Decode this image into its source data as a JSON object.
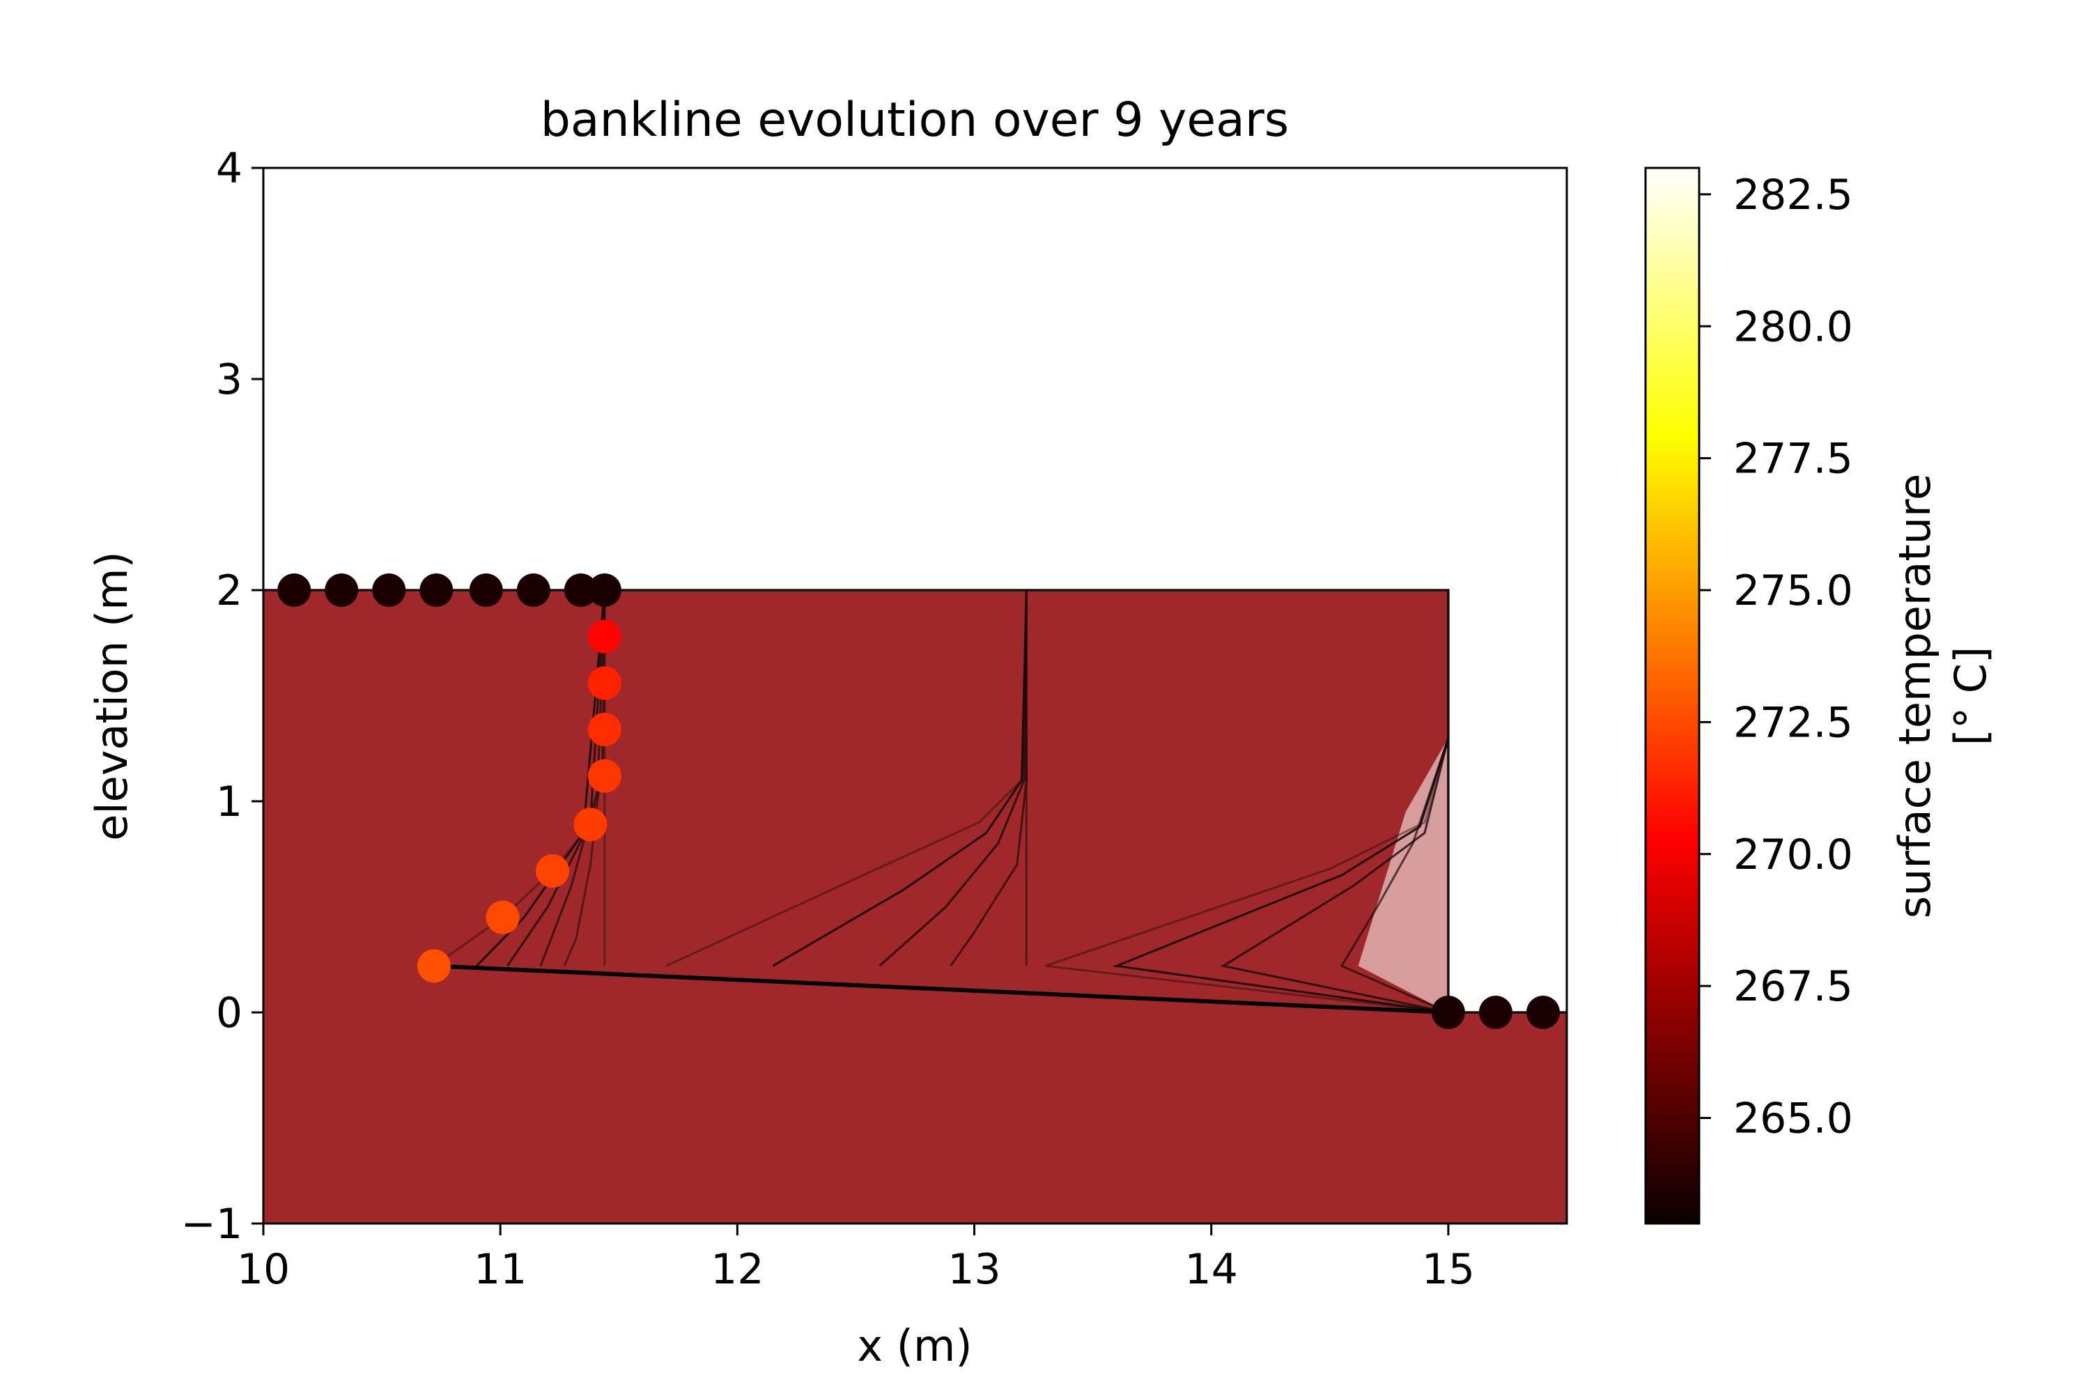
{
  "chart_data": {
    "type": "line",
    "title": "bankline evolution over 9 years",
    "xlabel": "x (m)",
    "ylabel": "elevation (m)",
    "xlim": [
      10,
      15.5
    ],
    "ylim": [
      -1,
      4
    ],
    "xticks": [
      10,
      11,
      12,
      13,
      14,
      15
    ],
    "yticks": [
      -1,
      0,
      1,
      2,
      3,
      4
    ],
    "xtick_labels": [
      "10",
      "11",
      "12",
      "13",
      "14",
      "15"
    ],
    "ytick_labels": [
      "−1",
      "0",
      "1",
      "2",
      "3",
      "4"
    ],
    "grid": false,
    "fill_color": "#a0282b",
    "profiles": [
      {
        "step": 0,
        "points": [
          [
            11.44,
            2.0
          ],
          [
            11.44,
            0.22
          ]
        ]
      },
      {
        "step": 1,
        "points": [
          [
            11.44,
            2.0
          ],
          [
            11.43,
            1.2
          ],
          [
            11.38,
            0.7
          ],
          [
            11.32,
            0.35
          ],
          [
            11.27,
            0.22
          ]
        ]
      },
      {
        "step": 2,
        "points": [
          [
            11.44,
            2.0
          ],
          [
            11.41,
            1.05
          ],
          [
            11.3,
            0.6
          ],
          [
            11.17,
            0.22
          ]
        ]
      },
      {
        "step": 3,
        "points": [
          [
            11.44,
            2.0
          ],
          [
            11.38,
            0.9
          ],
          [
            11.2,
            0.5
          ],
          [
            11.03,
            0.22
          ]
        ]
      },
      {
        "step": 4,
        "points": [
          [
            11.44,
            2.0
          ],
          [
            11.35,
            0.85
          ],
          [
            11.1,
            0.45
          ],
          [
            10.9,
            0.22
          ]
        ]
      },
      {
        "step": 5,
        "points": [
          [
            11.44,
            2.0
          ],
          [
            11.44,
            1.78
          ],
          [
            11.44,
            1.56
          ],
          [
            11.44,
            1.34
          ],
          [
            11.43,
            1.12
          ],
          [
            11.38,
            0.89
          ],
          [
            11.22,
            0.67
          ],
          [
            11.01,
            0.45
          ],
          [
            10.72,
            0.22
          ]
        ]
      },
      {
        "step": 6,
        "points": [
          [
            13.22,
            2.0
          ],
          [
            13.22,
            0.22
          ]
        ]
      },
      {
        "step": 7,
        "points": [
          [
            13.22,
            2.0
          ],
          [
            13.22,
            1.1
          ],
          [
            13.18,
            0.7
          ],
          [
            13.0,
            0.38
          ],
          [
            12.9,
            0.22
          ]
        ]
      },
      {
        "step": 8,
        "points": [
          [
            13.22,
            2.0
          ],
          [
            13.21,
            1.1
          ],
          [
            13.1,
            0.8
          ],
          [
            12.88,
            0.5
          ],
          [
            12.6,
            0.22
          ]
        ]
      },
      {
        "step": 9,
        "points": [
          [
            13.22,
            2.0
          ],
          [
            13.2,
            1.1
          ],
          [
            13.05,
            0.85
          ],
          [
            12.7,
            0.58
          ],
          [
            12.15,
            0.22
          ]
        ]
      },
      {
        "step": 10,
        "points": [
          [
            13.22,
            2.0
          ],
          [
            13.2,
            1.1
          ],
          [
            13.02,
            0.9
          ],
          [
            12.55,
            0.66
          ],
          [
            11.7,
            0.22
          ]
        ]
      },
      {
        "step": 11,
        "points": [
          [
            15.0,
            2.0
          ],
          [
            15.0,
            0.0
          ]
        ]
      },
      {
        "step": 12,
        "points": [
          [
            15.0,
            2.0
          ],
          [
            15.0,
            1.3
          ],
          [
            14.85,
            0.8
          ],
          [
            14.7,
            0.5
          ],
          [
            14.55,
            0.22
          ],
          [
            15.0,
            0.0
          ]
        ]
      },
      {
        "step": 13,
        "points": [
          [
            15.0,
            2.0
          ],
          [
            15.0,
            1.3
          ],
          [
            14.9,
            0.85
          ],
          [
            14.6,
            0.6
          ],
          [
            14.05,
            0.22
          ],
          [
            15.0,
            0.0
          ]
        ]
      },
      {
        "step": 14,
        "points": [
          [
            15.0,
            2.0
          ],
          [
            15.0,
            1.3
          ],
          [
            14.88,
            0.88
          ],
          [
            14.55,
            0.65
          ],
          [
            13.6,
            0.22
          ],
          [
            15.0,
            0.0
          ]
        ]
      },
      {
        "step": 15,
        "points": [
          [
            15.0,
            2.0
          ],
          [
            15.0,
            1.3
          ],
          [
            14.9,
            0.9
          ],
          [
            14.5,
            0.68
          ],
          [
            13.3,
            0.22
          ],
          [
            15.0,
            0.0
          ]
        ]
      }
    ],
    "channel_bed": [
      [
        10.72,
        0.22
      ],
      [
        15.0,
        0.0
      ]
    ],
    "initial_bank": [
      [
        10.0,
        2.0
      ],
      [
        15.0,
        2.0
      ],
      [
        15.0,
        0.0
      ],
      [
        15.5,
        0.0
      ]
    ],
    "node_points": [
      {
        "x": 10.13,
        "y": 2.0,
        "t": 263.5
      },
      {
        "x": 10.33,
        "y": 2.0,
        "t": 263.5
      },
      {
        "x": 10.53,
        "y": 2.0,
        "t": 263.5
      },
      {
        "x": 10.73,
        "y": 2.0,
        "t": 263.5
      },
      {
        "x": 10.94,
        "y": 2.0,
        "t": 263.5
      },
      {
        "x": 11.14,
        "y": 2.0,
        "t": 263.5
      },
      {
        "x": 11.34,
        "y": 2.0,
        "t": 263.5
      },
      {
        "x": 11.44,
        "y": 2.0,
        "t": 263.5
      },
      {
        "x": 11.44,
        "y": 1.78,
        "t": 270.4
      },
      {
        "x": 11.44,
        "y": 1.56,
        "t": 271.3
      },
      {
        "x": 11.44,
        "y": 1.34,
        "t": 271.6
      },
      {
        "x": 11.44,
        "y": 1.12,
        "t": 271.9
      },
      {
        "x": 11.38,
        "y": 0.89,
        "t": 272.1
      },
      {
        "x": 11.22,
        "y": 0.67,
        "t": 272.3
      },
      {
        "x": 11.01,
        "y": 0.45,
        "t": 272.5
      },
      {
        "x": 10.72,
        "y": 0.22,
        "t": 272.7
      },
      {
        "x": 15.0,
        "y": 0.0,
        "t": 263.5
      },
      {
        "x": 15.2,
        "y": 0.0,
        "t": 263.5
      },
      {
        "x": 15.4,
        "y": 0.0,
        "t": 263.5
      }
    ],
    "colorbar": {
      "label": "surface temperature\n[° C]",
      "label_line1": "surface temperature",
      "label_line2": "[° C]",
      "colormap": "hot",
      "range": [
        263.0,
        283.0
      ],
      "ticks": [
        265.0,
        267.5,
        270.0,
        272.5,
        275.0,
        277.5,
        280.0,
        282.5
      ],
      "tick_labels": [
        "265.0",
        "267.5",
        "270.0",
        "272.5",
        "275.0",
        "277.5",
        "280.0",
        "282.5"
      ]
    }
  }
}
